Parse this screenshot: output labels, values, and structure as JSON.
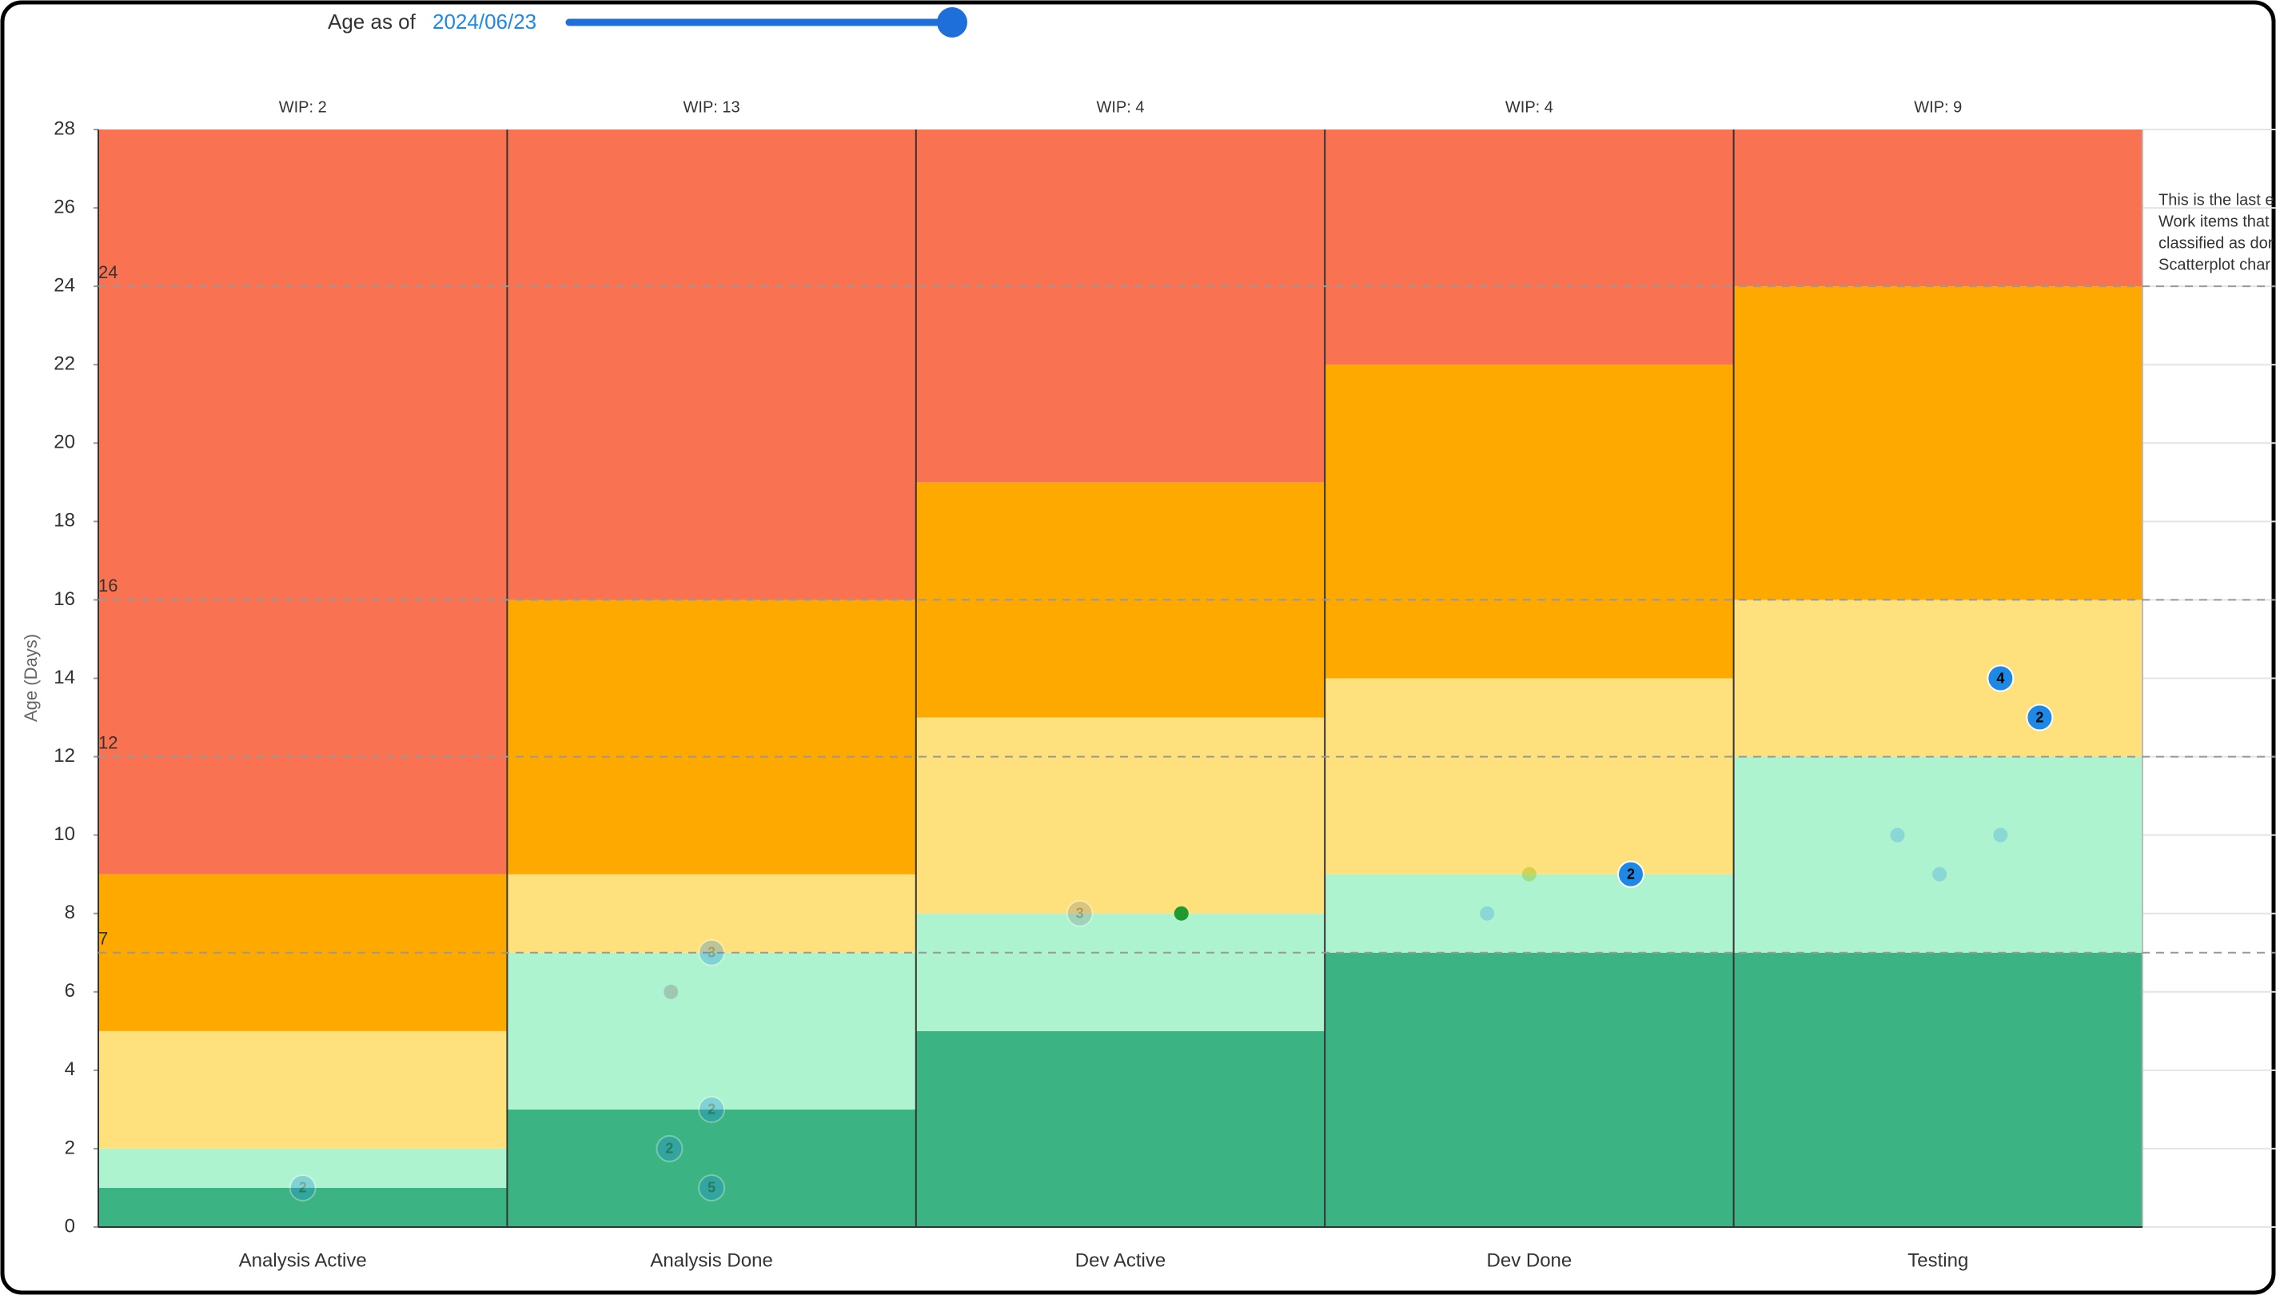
{
  "slider": {
    "label": "Age as of",
    "date": "2024/06/23"
  },
  "chart_data": {
    "type": "aging-wip",
    "y_label": "Age (Days)",
    "ylim": [
      0,
      28
    ],
    "yticks": [
      0,
      2,
      4,
      6,
      8,
      10,
      12,
      14,
      16,
      18,
      20,
      22,
      24,
      26,
      28
    ],
    "categories": [
      "Analysis Active",
      "Analysis Done",
      "Dev Active",
      "Dev Done",
      "Testing"
    ],
    "wip_labels": [
      "WIP: 2",
      "WIP: 13",
      "WIP: 4",
      "WIP: 4",
      "WIP: 9"
    ],
    "bands": [
      {
        "color": "#3bb382",
        "values": [
          1,
          3,
          5,
          7,
          7
        ]
      },
      {
        "color": "#adf3d0",
        "values": [
          1,
          4,
          3,
          2,
          5
        ]
      },
      {
        "color": "#fee17d",
        "values": [
          3,
          2,
          5,
          5,
          4
        ]
      },
      {
        "color": "#fda900",
        "values": [
          4,
          7,
          6,
          8,
          8
        ]
      },
      {
        "color": "#f97352",
        "values": [
          19,
          12,
          9,
          6,
          4
        ]
      }
    ],
    "reference_lines": [
      24,
      16,
      12,
      7
    ],
    "points": [
      {
        "category": 0,
        "value": 1,
        "count": 2,
        "color": "#1e88e5",
        "opacity": 0.3
      },
      {
        "category": 1,
        "value": 7,
        "count": 3,
        "color": "#1e88e5",
        "opacity": 0.3
      },
      {
        "category": 1,
        "value": 6,
        "color": "#888888",
        "opacity": 0.4
      },
      {
        "category": 1,
        "value": 3,
        "count": 2,
        "color": "#1e88e5",
        "opacity": 0.3
      },
      {
        "category": 1,
        "value": 2,
        "count": 2,
        "color": "#1e88e5",
        "opacity": 0.3
      },
      {
        "category": 1,
        "value": 1,
        "count": 5,
        "color": "#1e88e5",
        "opacity": 0.3
      },
      {
        "category": 2,
        "value": 8,
        "count": 3,
        "color": "#888888",
        "opacity": 0.3
      },
      {
        "category": 2,
        "value": 8,
        "color": "#1e9a2e",
        "opacity": 1
      },
      {
        "category": 3,
        "value": 8,
        "color": "#1e88e5",
        "opacity": 0.25
      },
      {
        "category": 3,
        "value": 9,
        "color": "#8ab800",
        "opacity": 0.35
      },
      {
        "category": 3,
        "value": 9,
        "count": 2,
        "color": "#1e88e5",
        "opacity": 1
      },
      {
        "category": 4,
        "value": 14,
        "count": 4,
        "color": "#1e88e5",
        "opacity": 1
      },
      {
        "category": 4,
        "value": 13,
        "count": 2,
        "color": "#1e88e5",
        "opacity": 1
      },
      {
        "category": 4,
        "value": 10,
        "color": "#1e88e5",
        "opacity": 0.25
      },
      {
        "category": 4,
        "value": 9,
        "color": "#1e88e5",
        "opacity": 0.25
      },
      {
        "category": 4,
        "value": 10,
        "color": "#1e88e5",
        "opacity": 0.25
      }
    ],
    "note_lines": [
      "This is the last e",
      "Work items that",
      "classified as dor",
      "Scatterplot char"
    ]
  }
}
